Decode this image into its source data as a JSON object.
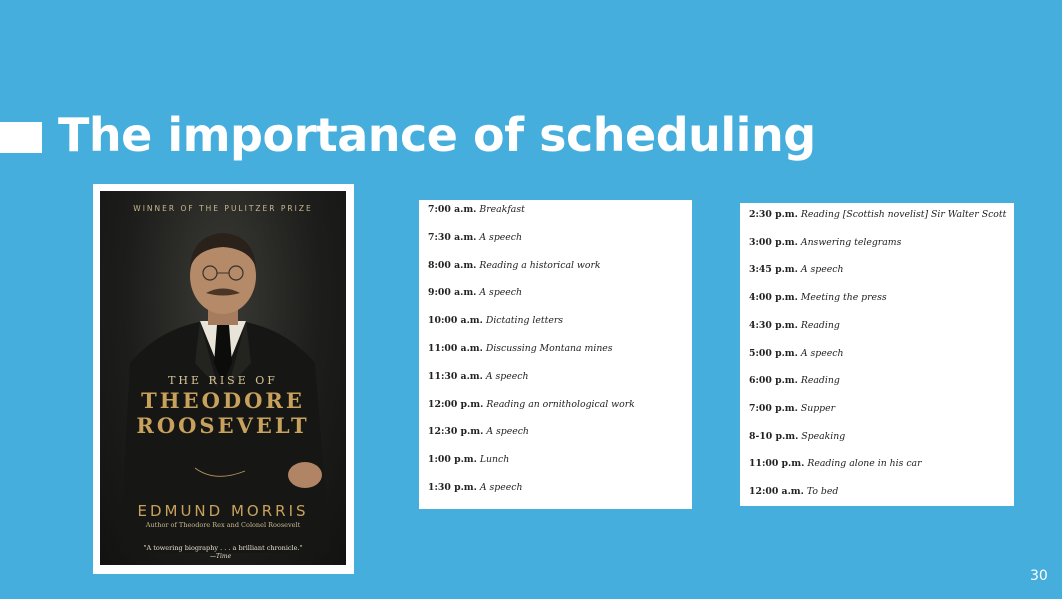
{
  "slide": {
    "title": "The importance of scheduling",
    "page_number": "30"
  },
  "book": {
    "prize": "WINNER OF THE PULITZER PRIZE",
    "title_line1": "THE RISE OF",
    "title_line2": "THEODORE",
    "title_line3": "ROOSEVELT",
    "author": "EDMUND MORRIS",
    "author_sub": "Author of Theodore Rex and Colonel Roosevelt",
    "quote": "\"A towering biography . . . a brilliant chronicle.\"",
    "quote_source": "—Time"
  },
  "schedule_left": [
    {
      "time": "7:00 a.m.",
      "activity": "Breakfast"
    },
    {
      "time": "7:30 a.m.",
      "activity": "A speech"
    },
    {
      "time": "8:00 a.m.",
      "activity": "Reading a historical work"
    },
    {
      "time": "9:00 a.m.",
      "activity": "A speech"
    },
    {
      "time": "10:00 a.m.",
      "activity": "Dictating letters"
    },
    {
      "time": "11:00 a.m.",
      "activity": "Discussing Montana mines"
    },
    {
      "time": "11:30 a.m.",
      "activity": "A speech"
    },
    {
      "time": "12:00 p.m.",
      "activity": "Reading an ornithological work"
    },
    {
      "time": "12:30 p.m.",
      "activity": "A speech"
    },
    {
      "time": "1:00 p.m.",
      "activity": "Lunch"
    },
    {
      "time": "1:30 p.m.",
      "activity": "A speech"
    }
  ],
  "schedule_right": [
    {
      "time": "2:30 p.m.",
      "activity": "Reading [Scottish novelist] Sir Walter Scott"
    },
    {
      "time": "3:00 p.m.",
      "activity": "Answering telegrams"
    },
    {
      "time": "3:45 p.m.",
      "activity": "A speech"
    },
    {
      "time": "4:00 p.m.",
      "activity": "Meeting the press"
    },
    {
      "time": "4:30 p.m.",
      "activity": "Reading"
    },
    {
      "time": "5:00 p.m.",
      "activity": "A speech"
    },
    {
      "time": "6:00 p.m.",
      "activity": "Reading"
    },
    {
      "time": "7:00 p.m.",
      "activity": "Supper"
    },
    {
      "time": "8-10 p.m.",
      "activity": "Speaking"
    },
    {
      "time": "11:00 p.m.",
      "activity": "Reading alone in his car"
    },
    {
      "time": "12:00 a.m.",
      "activity": "To bed"
    }
  ]
}
